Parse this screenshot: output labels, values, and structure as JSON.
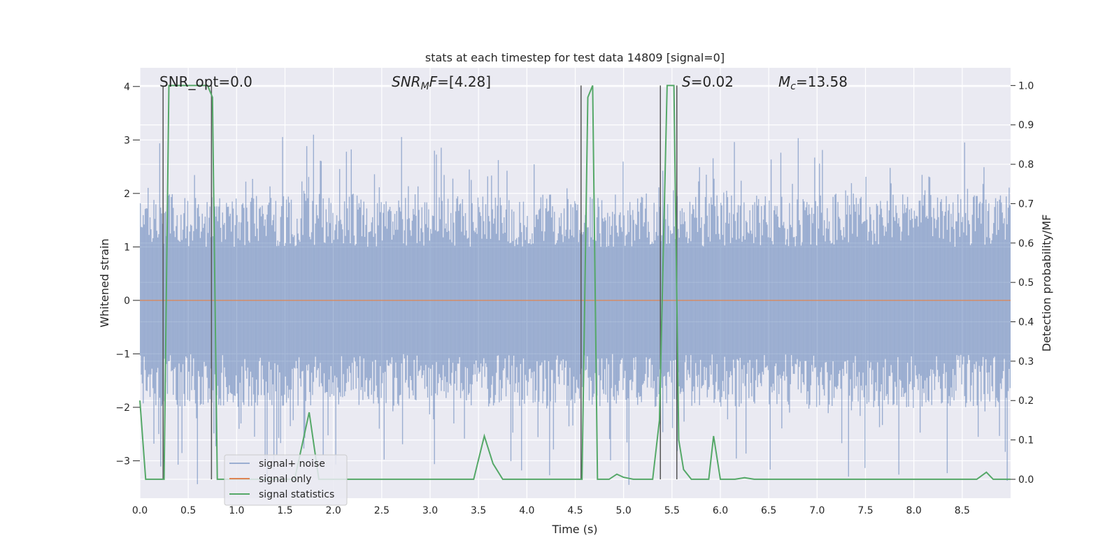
{
  "chart_data": {
    "type": "line",
    "title": "stats at each timestep for test data 14809 [signal=0]",
    "xlabel": "Time (s)",
    "ylabel": "Whitened strain",
    "y2label": "Detection probability/MF",
    "xlim": [
      0.0,
      9.0
    ],
    "ylim": [
      -3.7,
      4.35
    ],
    "y2lim": [
      -0.048,
      1.045
    ],
    "xticks": [
      "0.0",
      "0.5",
      "1.0",
      "1.5",
      "2.0",
      "2.5",
      "3.0",
      "3.5",
      "4.0",
      "4.5",
      "5.0",
      "5.5",
      "6.0",
      "6.5",
      "7.0",
      "7.5",
      "8.0",
      "8.5"
    ],
    "yticks": [
      "4",
      "3",
      "2",
      "1",
      "0",
      "−1",
      "−2",
      "−3"
    ],
    "y2ticks": [
      "1.0",
      "0.9",
      "0.8",
      "0.7",
      "0.6",
      "0.5",
      "0.4",
      "0.3",
      "0.2",
      "0.1",
      "0.0"
    ],
    "grid": true,
    "legend_position": "lower-left",
    "annotations": {
      "snr_opt": "SNR_opt=0.0",
      "snr_mf_main": "SNR",
      "snr_mf_sub": "M",
      "snr_mf_rest": "F=[4.28]",
      "s_main": "S",
      "s_rest": "=0.02",
      "mc_main": "M",
      "mc_sub": "c",
      "mc_rest": "=13.58"
    },
    "series": [
      {
        "name": "signal+ noise",
        "color": "#4c72b0",
        "style": "noise band, whitened strain approx ±1.5 with spikes to ±3.5"
      },
      {
        "name": "signal only",
        "color": "#dd8452",
        "values_constant": 0.0
      },
      {
        "name": "signal statistics",
        "color": "#55a868",
        "axis": "right",
        "x": [
          0.0,
          0.06,
          0.25,
          0.3,
          0.7,
          0.75,
          0.8,
          1.6,
          1.75,
          1.85,
          3.45,
          3.56,
          3.65,
          3.75,
          4.5,
          4.57,
          4.63,
          4.68,
          4.73,
          4.85,
          4.93,
          5.0,
          5.1,
          5.3,
          5.37,
          5.45,
          5.52,
          5.57,
          5.62,
          5.7,
          5.88,
          5.93,
          6.0,
          6.15,
          6.25,
          6.35,
          8.65,
          8.75,
          8.82,
          9.0
        ],
        "values": [
          0.2,
          0.0,
          0.0,
          1.0,
          1.0,
          0.97,
          0.0,
          0.0,
          0.17,
          0.0,
          0.0,
          0.11,
          0.04,
          0.0,
          0.0,
          0.0,
          0.97,
          1.0,
          0.0,
          0.0,
          0.013,
          0.005,
          0.0,
          0.0,
          0.15,
          1.0,
          1.0,
          0.1,
          0.025,
          0.0,
          0.0,
          0.11,
          0.0,
          0.0,
          0.004,
          0.0,
          0.0,
          0.018,
          0.0,
          0.0
        ]
      }
    ],
    "vertical_markers_x": [
      0.24,
      0.74,
      4.56,
      5.38,
      5.55
    ]
  }
}
